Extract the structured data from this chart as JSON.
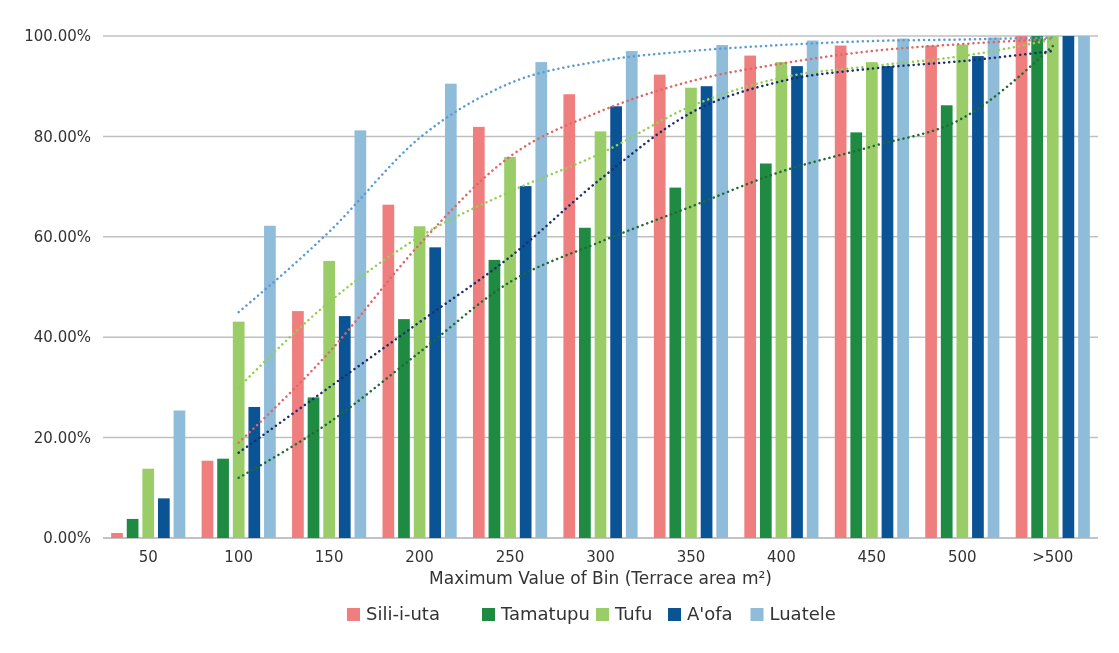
{
  "chart_data": {
    "type": "bar",
    "xlabel": "Maximum Value of Bin (Terrace area m²)",
    "categories": [
      "50",
      "100",
      "150",
      "200",
      "250",
      "300",
      "350",
      "400",
      "450",
      "500",
      ">500"
    ],
    "ylim": [
      0,
      100
    ],
    "yticks": [
      {
        "value": 0,
        "label": "0.00%"
      },
      {
        "value": 20,
        "label": "20.00%"
      },
      {
        "value": 40,
        "label": "40.00%"
      },
      {
        "value": 60,
        "label": "60.00%"
      },
      {
        "value": 80,
        "label": "80.00%"
      },
      {
        "value": 100,
        "label": "100.00%"
      }
    ],
    "grid": "y",
    "legend": "bottom",
    "series": [
      {
        "name": "Sili-i-uta",
        "color": "#ef7f7f",
        "values": [
          1,
          15.4,
          45.2,
          66.4,
          81.9,
          88.4,
          92.3,
          96.1,
          98.1,
          98.1,
          100
        ]
      },
      {
        "name": "Tamatupu",
        "color": "#1e8a42",
        "values": [
          3.8,
          15.8,
          28,
          43.6,
          55.4,
          61.8,
          69.8,
          74.6,
          80.8,
          86.2,
          100
        ]
      },
      {
        "name": "Tufu",
        "color": "#9acd68",
        "values": [
          13.8,
          43.1,
          55.2,
          62.1,
          75.9,
          81,
          89.7,
          94.8,
          94.8,
          98.3,
          100
        ]
      },
      {
        "name": "A'ofa",
        "color": "#0a5394",
        "values": [
          7.9,
          26.1,
          44.2,
          57.9,
          70.1,
          86,
          90,
          94,
          94,
          96,
          100
        ]
      },
      {
        "name": "Luatele",
        "color": "#8fbcd8",
        "values": [
          25.4,
          62.2,
          81.2,
          90.5,
          94.8,
          97,
          98.2,
          99.1,
          99.5,
          99.7,
          100
        ]
      },
      {
        "type": "line",
        "line_style": "dotted",
        "marker": "none",
        "color": "#e06666",
        "x": [
          "100",
          "150",
          "200",
          "250",
          "300",
          "350",
          "400",
          "450",
          "500",
          ">500"
        ],
        "values": [
          19,
          37,
          58.5,
          76,
          85,
          91,
          94.5,
          97,
          98.4,
          99.4
        ]
      },
      {
        "type": "line",
        "line_style": "dotted",
        "marker": "none",
        "color": "#1f6b30",
        "x": [
          "100",
          "150",
          "200",
          "250",
          "300",
          "350",
          "400",
          "450",
          "500",
          ">500"
        ],
        "values": [
          12,
          23,
          37,
          51,
          59,
          66,
          73,
          78,
          83.6,
          98
        ]
      },
      {
        "type": "line",
        "line_style": "dotted",
        "marker": "none",
        "color": "#92d050",
        "x": [
          "100",
          "150",
          "200",
          "250",
          "300",
          "350",
          "400",
          "450",
          "500",
          ">500"
        ],
        "values": [
          30,
          47,
          60,
          69,
          76.6,
          86,
          91.7,
          94,
          96,
          99.3
        ]
      },
      {
        "type": "line",
        "line_style": "dotted",
        "marker": "none",
        "color": "#1a2f6b",
        "x": [
          "100",
          "150",
          "200",
          "250",
          "300",
          "350",
          "400",
          "450",
          "500",
          ">500"
        ],
        "values": [
          17,
          30,
          43,
          56,
          71.5,
          84.7,
          91,
          93.5,
          95,
          97
        ]
      },
      {
        "type": "line",
        "line_style": "dotted",
        "marker": "none",
        "color": "#5b9bd5",
        "x": [
          "100",
          "150",
          "200",
          "250",
          "300",
          "350",
          "400",
          "450",
          "500",
          ">500"
        ],
        "values": [
          45,
          61,
          79.7,
          90.6,
          95,
          97,
          98.2,
          99,
          99.3,
          99.7
        ]
      }
    ]
  }
}
